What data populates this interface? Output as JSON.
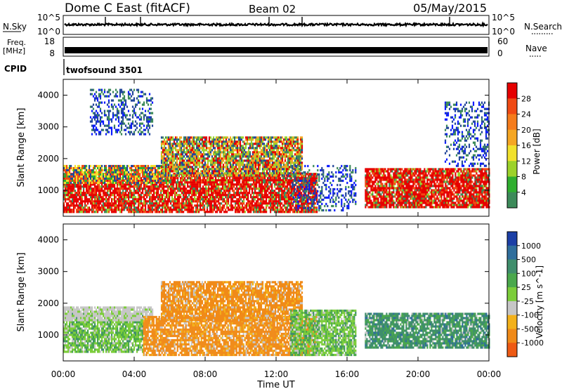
{
  "header": {
    "station": "Dome C East (fitACF)",
    "beam": "Beam 02",
    "date": "05/May/2015"
  },
  "top_panels": {
    "nsky_label": "N.Sky",
    "nsky_ticks": [
      "10^5",
      "10^0"
    ],
    "nsearch_label": "N.Search",
    "nsearch_ticks": [
      "10^5",
      "10^0"
    ],
    "freq_label": "Freq.",
    "freq_unit": "[MHz]",
    "freq_ticks": [
      "18",
      "8"
    ],
    "nave_label": "Nave",
    "nave_ticks": [
      "60",
      "0"
    ],
    "cpid_label": "CPID",
    "cpid_text": "twofsound 3501"
  },
  "axes": {
    "xlabel": "Time UT",
    "xticks": [
      "00:00",
      "04:00",
      "08:00",
      "12:00",
      "16:00",
      "20:00",
      "00:00"
    ],
    "ylabel": "Slant Range [km]",
    "yticks": [
      "1000",
      "2000",
      "3000",
      "4000"
    ]
  },
  "colorbars": {
    "power": {
      "label": "Power [dB]",
      "ticks": [
        "4",
        "8",
        "12",
        "16",
        "20",
        "24",
        "28"
      ],
      "colors": [
        "#0a1aff",
        "#23479a",
        "#3d8a5a",
        "#2fae2f",
        "#9cd22a",
        "#f1e12c",
        "#f5a623",
        "#f57c1c",
        "#f04a14",
        "#e60000"
      ]
    },
    "velocity": {
      "label": "Velocity [m s^-1]",
      "ticks": [
        "1000",
        "500",
        "100",
        "25",
        "-25",
        "-100",
        "-500",
        "-1000"
      ],
      "colors": [
        "#1c3fa6",
        "#2f6e9c",
        "#3f8e6c",
        "#4aa84c",
        "#7ccd3a",
        "#c6c6c6",
        "#f3b11a",
        "#f08a18",
        "#ee5a14",
        "#e60000"
      ]
    }
  },
  "chart_data": [
    {
      "type": "heatmap",
      "title": "Power",
      "xlabel": "Time UT",
      "ylabel": "Slant Range [km]",
      "x_range_hours": [
        0,
        24
      ],
      "ylim": [
        180,
        4500
      ],
      "colorbar": "Power [dB]",
      "regions": [
        {
          "t0": 0.0,
          "t1": 14.3,
          "r0": 300,
          "r1": 1550,
          "level": "high"
        },
        {
          "t0": 0.0,
          "t1": 6.0,
          "r0": 1250,
          "r1": 1800,
          "level": "mid"
        },
        {
          "t0": 5.5,
          "t1": 13.5,
          "r0": 1500,
          "r1": 2700,
          "level": "mixed"
        },
        {
          "t0": 12.8,
          "t1": 16.5,
          "r0": 400,
          "r1": 1800,
          "level": "low"
        },
        {
          "t0": 17.0,
          "t1": 24.0,
          "r0": 500,
          "r1": 1700,
          "level": "high"
        },
        {
          "t0": 1.5,
          "t1": 5.0,
          "r0": 2800,
          "r1": 4200,
          "level": "low"
        },
        {
          "t0": 21.5,
          "t1": 24.0,
          "r0": 1800,
          "r1": 3800,
          "level": "low"
        }
      ]
    },
    {
      "type": "heatmap",
      "title": "Velocity",
      "xlabel": "Time UT",
      "ylabel": "Slant Range [km]",
      "x_range_hours": [
        0,
        24
      ],
      "ylim": [
        180,
        4500
      ],
      "colorbar": "Velocity [m s^-1]",
      "regions": [
        {
          "t0": 0.0,
          "t1": 4.5,
          "r0": 450,
          "r1": 1700,
          "level": "positive_small"
        },
        {
          "t0": 0.0,
          "t1": 5.0,
          "r0": 1500,
          "r1": 1900,
          "level": "near_zero"
        },
        {
          "t0": 4.5,
          "t1": 14.3,
          "r0": 350,
          "r1": 1600,
          "level": "negative"
        },
        {
          "t0": 5.5,
          "t1": 13.5,
          "r0": 1500,
          "r1": 2700,
          "level": "negative"
        },
        {
          "t0": 12.8,
          "t1": 16.5,
          "r0": 400,
          "r1": 1800,
          "level": "positive_small"
        },
        {
          "t0": 17.0,
          "t1": 24.0,
          "r0": 600,
          "r1": 1700,
          "level": "positive_large"
        }
      ]
    }
  ]
}
